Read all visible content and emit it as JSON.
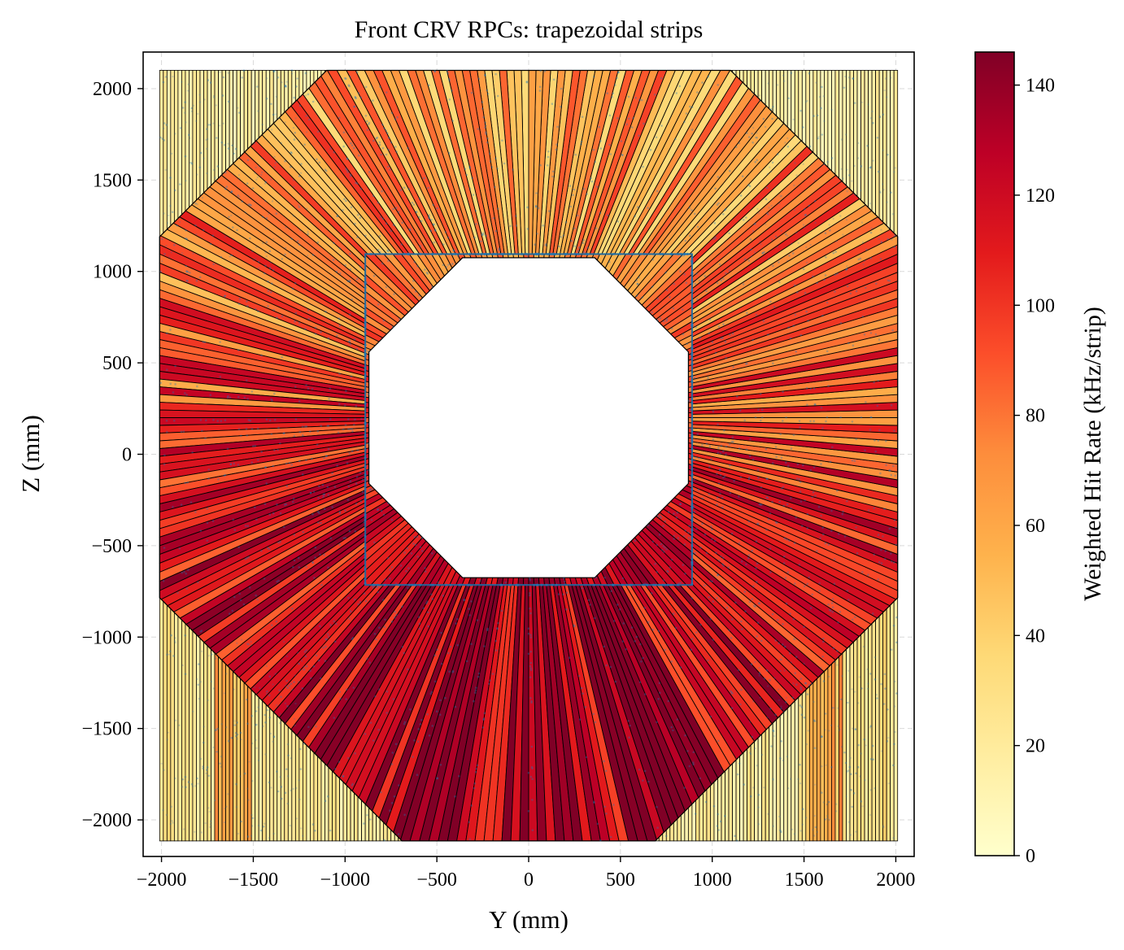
{
  "chart_data": {
    "type": "heatmap",
    "title": "Front CRV RPCs: trapezoidal strips",
    "xlabel": "Y (mm)",
    "ylabel": "Z (mm)",
    "xlim": [
      -2100,
      2100
    ],
    "ylim": [
      -2200,
      2200
    ],
    "xticks": [
      -2000,
      -1500,
      -1000,
      -500,
      0,
      500,
      1000,
      1500,
      2000
    ],
    "yticks": [
      -2000,
      -1500,
      -1000,
      -500,
      0,
      500,
      1000,
      1500,
      2000
    ],
    "xtick_labels": [
      "−2000",
      "−1500",
      "−1000",
      "−500",
      "0",
      "500",
      "1000",
      "1500",
      "2000"
    ],
    "ytick_labels": [
      "−2000",
      "−1500",
      "−1000",
      "−500",
      "0",
      "500",
      "1000",
      "1500",
      "2000"
    ],
    "grid": true,
    "colorbar": {
      "label": "Weighted Hit Rate (kHz/strip)",
      "range": [
        0,
        146
      ],
      "ticks": [
        0,
        20,
        40,
        60,
        80,
        100,
        120,
        140
      ],
      "tick_labels": [
        "0",
        "20",
        "40",
        "60",
        "80",
        "100",
        "120",
        "140"
      ],
      "colormap": "YlOrRd",
      "colormap_stops": [
        "#ffffcc",
        "#ffeda0",
        "#fed976",
        "#feb24c",
        "#fd8d3c",
        "#fc4e2a",
        "#e31a1c",
        "#bd0026",
        "#800026"
      ]
    },
    "detector_geometry": {
      "outer_rectangle_y": [
        -2010,
        2010
      ],
      "outer_rectangle_z": [
        -2115,
        2100
      ],
      "outer_octagon_vertices": [
        [
          -1100,
          2100
        ],
        [
          1100,
          2100
        ],
        [
          2010,
          1190
        ],
        [
          2010,
          -785
        ],
        [
          690,
          -2115
        ],
        [
          -690,
          -2115
        ],
        [
          -2010,
          -785
        ],
        [
          -2010,
          1190
        ]
      ],
      "inner_square_y": [
        -890,
        890
      ],
      "inner_square_z": [
        -715,
        1095
      ],
      "inner_octagon_vertices": [
        [
          -360,
          1075
        ],
        [
          360,
          1075
        ],
        [
          870,
          560
        ],
        [
          870,
          -160
        ],
        [
          360,
          -675
        ],
        [
          -360,
          -675
        ],
        [
          -870,
          -160
        ],
        [
          -870,
          560
        ]
      ],
      "ring_center": [
        0,
        200
      ],
      "radial_strip_count": 300,
      "inner_ring_strip_count": 200,
      "vertical_strip_pitch_mm": 20
    },
    "rate_profile": {
      "corner_vertical_strips": "low, 0-40 kHz/strip, with a few 40-80 near Y=±1600 at Z<0",
      "radial_strips_bottom": "highest, 100-146 kHz/strip",
      "radial_strips_sides_and_top": "40-130 kHz/strip"
    },
    "overlay": {
      "color": "#1f77b4",
      "description_visible": "blue hit points concentrated along radial strips and inner square edges"
    }
  }
}
